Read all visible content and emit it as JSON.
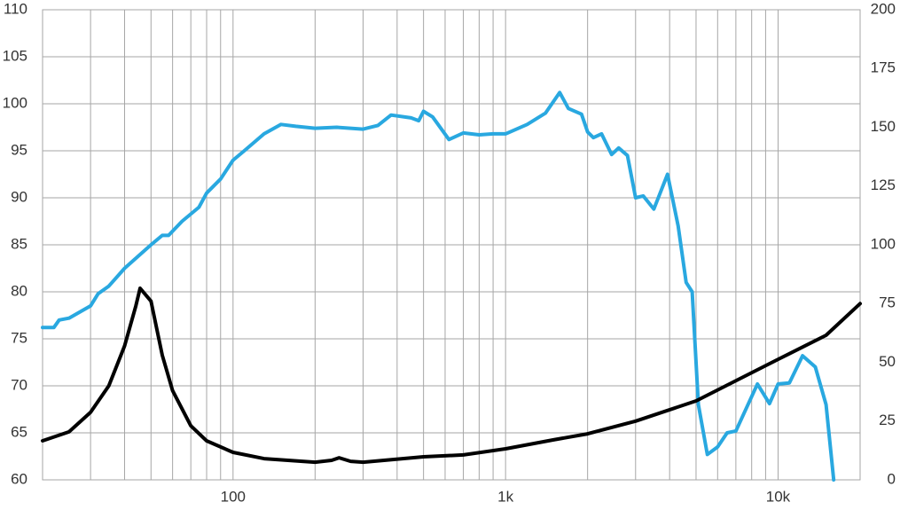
{
  "chart_data": {
    "type": "line",
    "xscale": "log",
    "grid": true,
    "xlim": [
      20,
      20000
    ],
    "ylim": [
      60,
      110
    ],
    "y2lim": [
      0,
      200
    ],
    "xticks": [
      100,
      {
        "value": 1000,
        "label": "1k"
      },
      {
        "value": 10000,
        "label": "10k"
      }
    ],
    "xgrid": [
      20,
      30,
      40,
      50,
      60,
      70,
      80,
      90,
      100,
      200,
      300,
      400,
      500,
      600,
      700,
      800,
      900,
      1000,
      2000,
      3000,
      4000,
      5000,
      6000,
      7000,
      8000,
      9000,
      10000
    ],
    "yticks": [
      60,
      65,
      70,
      75,
      80,
      85,
      90,
      95,
      100,
      105,
      110
    ],
    "y2ticks": [
      0,
      25,
      50,
      75,
      100,
      125,
      150,
      175,
      200
    ],
    "series": [
      {
        "color": "#29a8e0",
        "x": [
          20,
          22,
          23,
          25,
          30,
          32,
          35,
          40,
          50,
          55,
          58,
          65,
          75,
          80,
          90,
          100,
          110,
          130,
          150,
          170,
          200,
          240,
          300,
          340,
          380,
          450,
          480,
          500,
          540,
          620,
          700,
          800,
          900,
          1000,
          1200,
          1400,
          1580,
          1700,
          1900,
          2000,
          2100,
          2250,
          2450,
          2600,
          2800,
          3000,
          3200,
          3500,
          3930,
          4300,
          4600,
          4840,
          5100,
          5500,
          6000,
          6500,
          7000,
          8400,
          9300,
          10000,
          11000,
          12300,
          13700,
          15000,
          16000
        ],
        "values": [
          76.2,
          76.2,
          77,
          77.2,
          78.5,
          79.8,
          80.6,
          82.5,
          85,
          86,
          86,
          87.5,
          89,
          90.5,
          92,
          94,
          95,
          96.8,
          97.8,
          97.6,
          97.4,
          97.5,
          97.3,
          97.7,
          98.8,
          98.5,
          98.2,
          99.2,
          98.6,
          96.2,
          96.9,
          96.7,
          96.8,
          96.8,
          97.8,
          99,
          101.2,
          99.5,
          98.9,
          97,
          96.4,
          96.8,
          94.6,
          95.3,
          94.5,
          90,
          90.2,
          88.8,
          92.5,
          87,
          81,
          80,
          68,
          62.7,
          63.5,
          65,
          65.2,
          70.2,
          68.1,
          70.2,
          70.3,
          73.2,
          72,
          68,
          60
        ]
      },
      {
        "color": "#000000",
        "axis": "y2",
        "x": [
          20,
          25,
          30,
          35,
          40,
          44,
          45.6,
          50,
          55,
          60,
          70,
          80,
          100,
          130,
          200,
          230,
          245,
          270,
          300,
          500,
          700,
          1000,
          1500,
          2000,
          3000,
          5000,
          10000,
          15000,
          20000
        ],
        "values": [
          16.6,
          20.4,
          28.7,
          40,
          57,
          74,
          81.5,
          76,
          53,
          38,
          23,
          16.6,
          11.7,
          9,
          7.5,
          8.3,
          9.4,
          7.9,
          7.5,
          9.8,
          10.6,
          13.2,
          17,
          19.6,
          25,
          33.6,
          51.3,
          61.5,
          75
        ]
      }
    ]
  }
}
